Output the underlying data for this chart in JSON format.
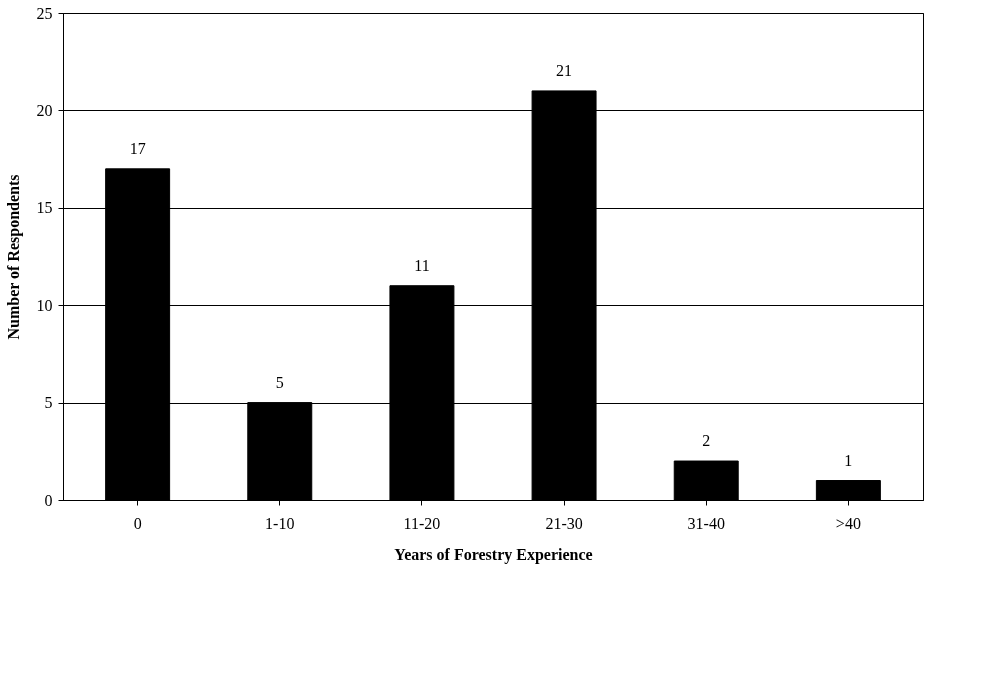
{
  "chart_data": {
    "type": "bar",
    "xlabel": "Years of Forestry Experience",
    "ylabel": "Number of Respondents",
    "categories": [
      "0",
      "1-10",
      "11-20",
      "21-30",
      "31-40",
      ">40"
    ],
    "values": [
      17,
      5,
      11,
      21,
      2,
      1
    ],
    "color": "#000000",
    "ylim": [
      0,
      25
    ],
    "yticks": [
      0,
      5,
      10,
      15,
      20,
      25
    ],
    "grid": "y",
    "data_labels": true
  }
}
